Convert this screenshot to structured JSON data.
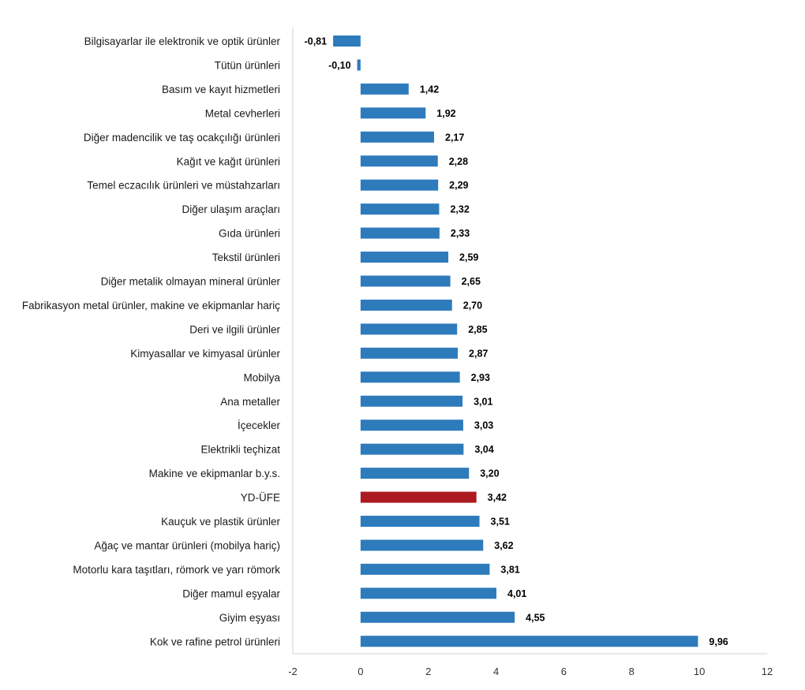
{
  "chart_data": {
    "type": "bar",
    "orientation": "horizontal",
    "categories": [
      "Bilgisayarlar ile elektronik ve optik ürünler",
      "Tütün ürünleri",
      "Basım ve kayıt hizmetleri",
      "Metal cevherleri",
      "Diğer madencilik ve taş ocakçılığı ürünleri",
      "Kağıt ve kağıt ürünleri",
      "Temel eczacılık ürünleri ve müstahzarları",
      "Diğer ulaşım araçları",
      "Gıda ürünleri",
      "Tekstil ürünleri",
      "Diğer metalik olmayan mineral ürünler",
      "Fabrikasyon metal ürünler, makine ve ekipmanlar hariç",
      "Deri ve ilgili ürünler",
      "Kimyasallar ve kimyasal ürünler",
      "Mobilya",
      "Ana metaller",
      "İçecekler",
      "Elektrikli teçhizat",
      "Makine ve ekipmanlar b.y.s.",
      "YD-ÜFE",
      "Kauçuk ve plastik ürünler",
      "Ağaç ve mantar ürünleri (mobilya hariç)",
      "Motorlu kara taşıtları, römork ve yarı römork",
      "Diğer mamul eşyalar",
      "Giyim eşyası",
      "Kok ve rafine petrol ürünleri"
    ],
    "values": [
      -0.81,
      -0.1,
      1.42,
      1.92,
      2.17,
      2.28,
      2.29,
      2.32,
      2.33,
      2.59,
      2.65,
      2.7,
      2.85,
      2.87,
      2.93,
      3.01,
      3.03,
      3.04,
      3.2,
      3.42,
      3.51,
      3.62,
      3.81,
      4.01,
      4.55,
      9.96
    ],
    "value_labels": [
      "-0,81",
      "-0,10",
      "1,42",
      "1,92",
      "2,17",
      "2,28",
      "2,29",
      "2,32",
      "2,33",
      "2,59",
      "2,65",
      "2,70",
      "2,85",
      "2,87",
      "2,93",
      "3,01",
      "3,03",
      "3,04",
      "3,20",
      "3,42",
      "3,51",
      "3,62",
      "3,81",
      "4,01",
      "4,55",
      "9,96"
    ],
    "highlight_category": "YD-ÜFE",
    "xlim": [
      -2,
      12
    ],
    "xticks": [
      -2,
      0,
      2,
      4,
      6,
      8,
      10,
      12
    ],
    "title": "",
    "xlabel": "",
    "ylabel": "",
    "grid": false,
    "legend": "none",
    "colors": {
      "bar": "#2e7bbc",
      "highlight": "#ad1a22",
      "axis": "#d0d0d0"
    }
  }
}
